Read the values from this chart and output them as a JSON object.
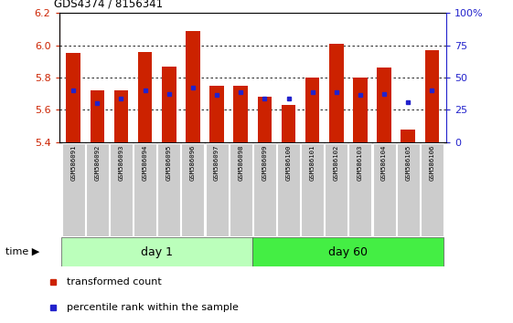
{
  "title": "GDS4374 / 8156341",
  "samples": [
    "GSM586091",
    "GSM586092",
    "GSM586093",
    "GSM586094",
    "GSM586095",
    "GSM586096",
    "GSM586097",
    "GSM586098",
    "GSM586099",
    "GSM586100",
    "GSM586101",
    "GSM586102",
    "GSM586103",
    "GSM586104",
    "GSM586105",
    "GSM586106"
  ],
  "bar_heights": [
    5.95,
    5.72,
    5.72,
    5.96,
    5.87,
    6.09,
    5.75,
    5.75,
    5.68,
    5.63,
    5.8,
    6.01,
    5.8,
    5.86,
    5.48,
    5.97
  ],
  "blue_values": [
    5.72,
    5.64,
    5.67,
    5.72,
    5.7,
    5.74,
    5.69,
    5.71,
    5.67,
    5.67,
    5.71,
    5.71,
    5.69,
    5.7,
    5.65,
    5.72
  ],
  "bar_color": "#cc2200",
  "blue_color": "#2222cc",
  "ymin": 5.4,
  "ymax": 6.2,
  "yticks": [
    5.4,
    5.6,
    5.8,
    6.0,
    6.2
  ],
  "right_yticks": [
    0,
    25,
    50,
    75,
    100
  ],
  "right_yticklabels": [
    "0",
    "25",
    "50",
    "75",
    "100%"
  ],
  "day1_samples": 8,
  "day60_samples": 8,
  "day1_label": "day 1",
  "day60_label": "day 60",
  "day1_color": "#bbffbb",
  "day60_color": "#44ee44",
  "time_label": "time",
  "legend_red": "transformed count",
  "legend_blue": "percentile rank within the sample",
  "bg_color": "#ffffff",
  "tick_label_bg": "#cccccc"
}
